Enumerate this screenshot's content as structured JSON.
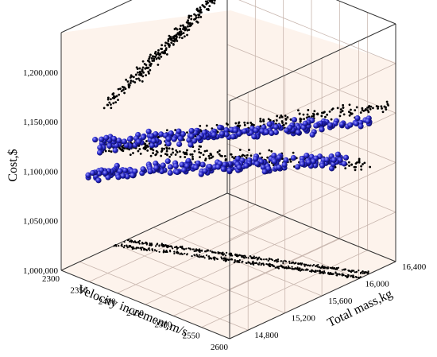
{
  "chart_data": {
    "type": "scatter",
    "title": "",
    "zlabel": "Cost,$",
    "xlabel": "Velocity increment,m/s",
    "ylabel": "Total mass,kg",
    "x_ticks": [
      "2300",
      "2350",
      "2400",
      "2450",
      "2500",
      "2550",
      "2600"
    ],
    "y_ticks": [
      "14,800",
      "15,200",
      "15,600",
      "16,000",
      "16,400"
    ],
    "z_ticks": [
      "1,000,000",
      "1,050,000",
      "1,100,000",
      "1,150,000",
      "1,200,000"
    ],
    "xlim": [
      2300,
      2600
    ],
    "ylim": [
      14600,
      16400
    ],
    "zlim": [
      1000000,
      1240000
    ],
    "grid": true,
    "background": "#fdf3ec",
    "series": [
      {
        "color": "#000000",
        "marker": "small-dot",
        "segments": [
          {
            "from": {
              "x": 2300,
              "y": 15100,
              "z": 1145000
            },
            "to": {
              "x": 2300,
              "y": 16300,
              "z": 1205000
            }
          },
          {
            "from": {
              "x": 2300,
              "y": 15050,
              "z": 1105000
            },
            "to": {
              "x": 2600,
              "y": 16100,
              "z": 1110000
            }
          },
          {
            "from": {
              "x": 2300,
              "y": 15050,
              "z": 1105000
            },
            "to": {
              "x": 2600,
              "y": 16350,
              "z": 1160000
            }
          }
        ]
      },
      {
        "color": "#2626c8",
        "marker": "sphere",
        "segments": [
          {
            "from": {
              "x": 2300,
              "y": 15000,
              "z": 1110000
            },
            "to": {
              "x": 2600,
              "y": 16100,
              "z": 1155000
            }
          },
          {
            "from": {
              "x": 2300,
              "y": 14900,
              "z": 1085000
            },
            "to": {
              "x": 2600,
              "y": 15900,
              "z": 1125000
            }
          }
        ]
      }
    ],
    "projection": {
      "x_range": [
        2300,
        2600
      ],
      "y_range": [
        15000,
        16300
      ],
      "z": 1000000
    }
  }
}
